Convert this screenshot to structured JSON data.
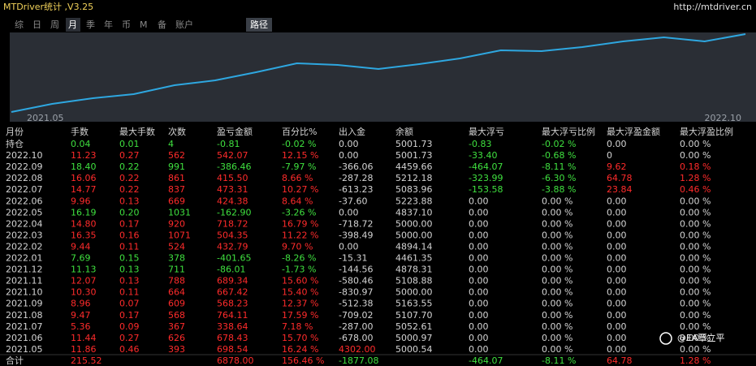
{
  "header": {
    "title": "MTDriver统计 ,V3.25",
    "url": "http://mtdriver.cn"
  },
  "menu": {
    "items": [
      "综",
      "日",
      "周",
      "月",
      "季",
      "年",
      "币",
      "M",
      "备",
      "账户"
    ],
    "active": 3,
    "path_button": "路径"
  },
  "chart_data": {
    "type": "line",
    "x_start_label": "2021.05",
    "x_end_label": "2022.10",
    "values": [
      2,
      12,
      19,
      24,
      35,
      41,
      51,
      62,
      60,
      55,
      61,
      68,
      78,
      77,
      82,
      89,
      94,
      89,
      98
    ],
    "ylim": [
      0,
      100
    ],
    "color": "#2ea7e0"
  },
  "palette": {
    "W": "#d4d4d4",
    "R": "#ff2b2b",
    "G": "#3fe03f"
  },
  "table": {
    "header": [
      "月份",
      "手数",
      "最大手数",
      "次数",
      "盈亏金额",
      "百分比%",
      "出入金",
      "余额",
      "最大浮亏",
      "最大浮亏比例",
      "最大浮盈金额",
      "最大浮盈比例"
    ],
    "rows": [
      {
        "cells": [
          "持仓",
          "0.04",
          "0.01",
          "4",
          "-0.81",
          "-0.02 %",
          "0.00",
          "5001.73",
          "-0.83",
          "-0.02 %",
          "0.00",
          "0.00 %"
        ],
        "tone": "WGGGGGWWGGWW"
      },
      {
        "cells": [
          "2022.10",
          "11.23",
          "0.27",
          "562",
          "542.07",
          "12.15 %",
          "0.00",
          "5001.73",
          "-33.40",
          "-0.68 %",
          "0",
          "0.00 %"
        ],
        "tone": "WRRRRRWWGGWW"
      },
      {
        "cells": [
          "2022.09",
          "18.40",
          "0.22",
          "991",
          "-386.46",
          "-7.97 %",
          "-366.06",
          "4459.66",
          "-464.07",
          "-8.11 %",
          "9.62",
          "0.18 %"
        ],
        "tone": "WGGGGGWWGGRR"
      },
      {
        "cells": [
          "2022.08",
          "16.06",
          "0.22",
          "861",
          "415.50",
          "8.66 %",
          "-287.28",
          "5212.18",
          "-323.99",
          "-6.30 %",
          "64.78",
          "1.28 %"
        ],
        "tone": "WRRRRRWWGGRR"
      },
      {
        "cells": [
          "2022.07",
          "14.77",
          "0.22",
          "837",
          "473.31",
          "10.27 %",
          "-613.23",
          "5083.96",
          "-153.58",
          "-3.88 %",
          "23.84",
          "0.46 %"
        ],
        "tone": "WRRRRRWWGGRR"
      },
      {
        "cells": [
          "2022.06",
          "9.96",
          "0.13",
          "669",
          "424.38",
          "8.64 %",
          "-37.60",
          "5223.88",
          "0.00",
          "0.00 %",
          "0.00",
          "0.00 %"
        ],
        "tone": "WRRRRRWWWWWW"
      },
      {
        "cells": [
          "2022.05",
          "16.19",
          "0.20",
          "1031",
          "-162.90",
          "-3.26 %",
          "0.00",
          "4837.10",
          "0.00",
          "0.00 %",
          "0.00",
          "0.00 %"
        ],
        "tone": "WGGGGGWWWWWW"
      },
      {
        "cells": [
          "2022.04",
          "14.80",
          "0.17",
          "920",
          "718.72",
          "16.79 %",
          "-718.72",
          "5000.00",
          "0.00",
          "0.00 %",
          "0.00",
          "0.00 %"
        ],
        "tone": "WRRRRRWWWWWW"
      },
      {
        "cells": [
          "2022.03",
          "16.35",
          "0.16",
          "1071",
          "504.35",
          "11.22 %",
          "-398.49",
          "5000.00",
          "0.00",
          "0.00 %",
          "0.00",
          "0.00 %"
        ],
        "tone": "WRRRRRWWWWWW"
      },
      {
        "cells": [
          "2022.02",
          "9.44",
          "0.11",
          "524",
          "432.79",
          "9.70 %",
          "0.00",
          "4894.14",
          "0.00",
          "0.00 %",
          "0.00",
          "0.00 %"
        ],
        "tone": "WRRRRRWWWWWW"
      },
      {
        "cells": [
          "2022.01",
          "7.69",
          "0.15",
          "378",
          "-401.65",
          "-8.26 %",
          "-15.31",
          "4461.35",
          "0.00",
          "0.00 %",
          "0.00",
          "0.00 %"
        ],
        "tone": "WGGGGGWWWWWW"
      },
      {
        "cells": [
          "2021.12",
          "11.13",
          "0.13",
          "711",
          "-86.01",
          "-1.73 %",
          "-144.56",
          "4878.31",
          "0.00",
          "0.00 %",
          "0.00",
          "0.00 %"
        ],
        "tone": "WGGGGGWWWWWW"
      },
      {
        "cells": [
          "2021.11",
          "12.07",
          "0.13",
          "788",
          "689.34",
          "15.60 %",
          "-580.46",
          "5108.88",
          "0.00",
          "0.00 %",
          "0.00",
          "0.00 %"
        ],
        "tone": "WRRRRRWWWWWW"
      },
      {
        "cells": [
          "2021.10",
          "10.30",
          "0.11",
          "664",
          "667.42",
          "15.40 %",
          "-830.97",
          "5000.00",
          "0.00",
          "0.00 %",
          "0.00",
          "0.00 %"
        ],
        "tone": "WRRRRRWWWWWW"
      },
      {
        "cells": [
          "2021.09",
          "8.96",
          "0.07",
          "609",
          "568.23",
          "12.37 %",
          "-512.38",
          "5163.55",
          "0.00",
          "0.00 %",
          "0.00",
          "0.00 %"
        ],
        "tone": "WRRRRRWWWWWW"
      },
      {
        "cells": [
          "2021.08",
          "9.47",
          "0.17",
          "568",
          "764.11",
          "17.59 %",
          "-709.02",
          "5107.70",
          "0.00",
          "0.00 %",
          "0.00",
          "0.00 %"
        ],
        "tone": "WRRRRRWWWWWW"
      },
      {
        "cells": [
          "2021.07",
          "5.36",
          "0.09",
          "367",
          "338.64",
          "7.18 %",
          "-287.00",
          "5052.61",
          "0.00",
          "0.00 %",
          "0.00",
          "0.00 %"
        ],
        "tone": "WRRRRRWWWWWW"
      },
      {
        "cells": [
          "2021.06",
          "11.44",
          "0.27",
          "626",
          "678.43",
          "15.70 %",
          "-678.00",
          "5000.97",
          "0.00",
          "0.00 %",
          "0.00",
          "0.00 %"
        ],
        "tone": "WRRRRRWWWWWW"
      },
      {
        "cells": [
          "2021.05",
          "11.86",
          "0.46",
          "393",
          "698.54",
          "16.24 %",
          "4302.00",
          "5000.54",
          "0.00",
          "0.00 %",
          "0.00",
          "0.00 %"
        ],
        "tone": "WRRRRRRWWWWW"
      },
      {
        "cells": [
          "合计",
          "215.52",
          null,
          null,
          "6878.00",
          "156.46 %",
          "-1877.08",
          null,
          "-464.07",
          "-8.11 %",
          "64.78",
          "1.28 %"
        ],
        "tone": "WRWWRRGWGGRR"
      }
    ]
  },
  "watermark": "@EA覃立平"
}
